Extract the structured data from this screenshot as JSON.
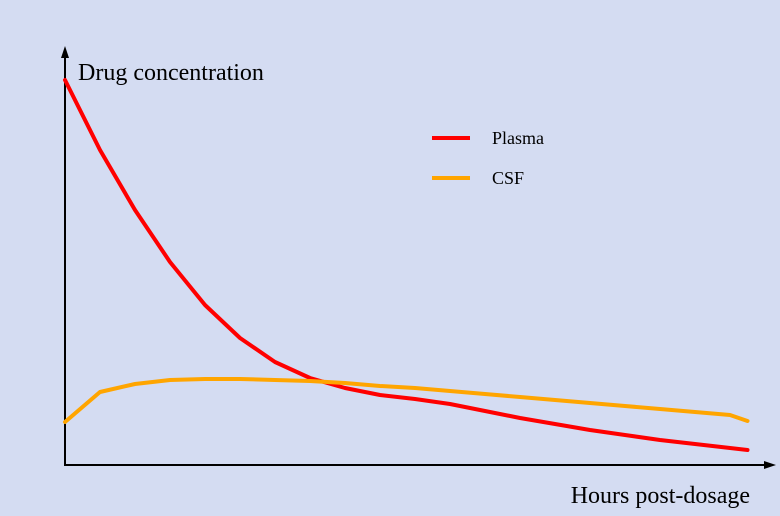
{
  "chart_data": {
    "type": "line",
    "y_label": "Drug concentration",
    "x_label": "Hours post-dosage",
    "x": [
      0,
      5,
      10,
      15,
      20,
      25,
      30,
      35,
      40,
      45,
      50,
      55,
      60,
      65,
      70,
      75,
      80,
      85,
      90,
      95,
      97.5
    ],
    "series": [
      {
        "name": "Plasma",
        "color": "#ff0000",
        "values": [
          96.25,
          78.75,
          63.75,
          50.75,
          40,
          31.75,
          25.75,
          21.75,
          19.25,
          17.5,
          16.5,
          15.25,
          13.5,
          11.75,
          10.25,
          8.75,
          7.5,
          6.25,
          5.25,
          4.25,
          3.75
        ]
      },
      {
        "name": "CSF",
        "color": "#ffa500",
        "values": [
          10.75,
          18.25,
          20.25,
          21.25,
          21.5,
          21.5,
          21.25,
          21,
          20.5,
          19.75,
          19.25,
          18.5,
          17.75,
          17,
          16.25,
          15.5,
          14.75,
          14,
          13.25,
          12.5,
          11
        ]
      }
    ],
    "xlim": [
      0,
      100
    ],
    "ylim": [
      0,
      100
    ]
  }
}
